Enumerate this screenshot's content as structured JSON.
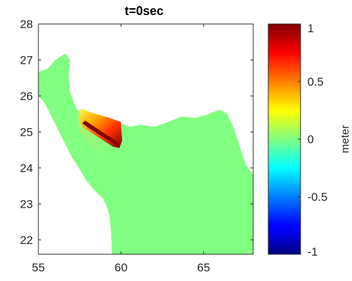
{
  "chart_data": {
    "type": "heatmap",
    "title": "t=0sec",
    "xlabel": "",
    "ylabel": "",
    "xlim": [
      55,
      68
    ],
    "ylim": [
      21.6,
      28
    ],
    "x_ticks": [
      "55",
      "60",
      "65"
    ],
    "x_tick_values": [
      55,
      60,
      65
    ],
    "y_ticks": [
      "22",
      "23",
      "24",
      "25",
      "26",
      "27",
      "28"
    ],
    "y_tick_values": [
      22,
      23,
      24,
      25,
      26,
      27,
      28
    ],
    "grid": false,
    "colorbar": {
      "label": "meter",
      "clim": [
        -1,
        1
      ],
      "ticks": [
        "-1",
        "-0.5",
        "0",
        "0.5",
        "1"
      ],
      "tick_values": [
        -1,
        -0.5,
        0,
        0.5,
        1
      ],
      "colormap": "jet"
    },
    "background_value": 0,
    "source_zone": {
      "lon_range": [
        57.8,
        59.9
      ],
      "lat_range": [
        24.6,
        25.6
      ],
      "peak_value": 1.0,
      "trough_value": 0.0
    }
  },
  "colors": {
    "land": "#ffffff",
    "zero_level": "#80ff80",
    "axis": "#262626"
  }
}
